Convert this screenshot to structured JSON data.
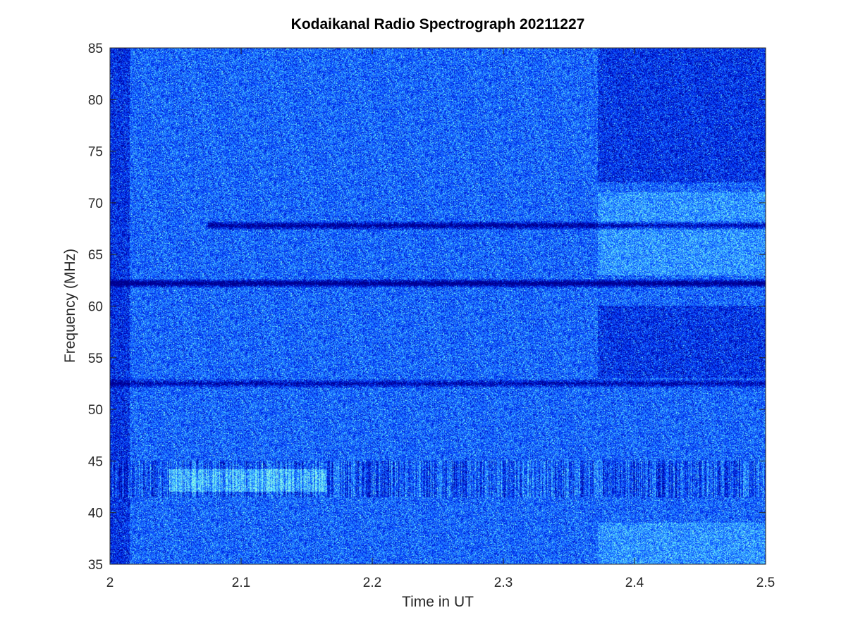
{
  "chart_data": {
    "type": "heatmap",
    "title": "Kodaikanal Radio Spectrograph  20211227",
    "xlabel": "Time in UT",
    "ylabel": "Frequency (MHz)",
    "xlim": [
      2,
      2.5
    ],
    "ylim": [
      35,
      85
    ],
    "x_ticks": [
      2,
      2.1,
      2.2,
      2.3,
      2.4,
      2.5
    ],
    "x_tick_labels": [
      "2",
      "2.1",
      "2.2",
      "2.3",
      "2.4",
      "2.5"
    ],
    "y_ticks": [
      35,
      40,
      45,
      50,
      55,
      60,
      65,
      70,
      75,
      80,
      85
    ],
    "y_tick_labels": [
      "35",
      "40",
      "45",
      "50",
      "55",
      "60",
      "65",
      "70",
      "75",
      "80",
      "85"
    ],
    "grid": false,
    "colormap": [
      "#00008f",
      "#0010c8",
      "#0040ff",
      "#1c6cff",
      "#3ab0ff",
      "#60e8ff",
      "#a0ffe0"
    ],
    "features": [
      {
        "kind": "horizontal_absorption_line",
        "frequency_mhz": 62.2,
        "x_start": 2.0,
        "x_end": 2.5,
        "strength": 0.95
      },
      {
        "kind": "horizontal_absorption_line",
        "frequency_mhz": 67.8,
        "x_start": 2.075,
        "x_end": 2.5,
        "strength": 0.8
      },
      {
        "kind": "horizontal_absorption_line",
        "frequency_mhz": 52.5,
        "x_start": 2.0,
        "x_end": 2.5,
        "strength": 0.6
      },
      {
        "kind": "bright_band",
        "f_low": 42.0,
        "f_high": 44.2,
        "x_start": 2.045,
        "x_end": 2.165,
        "strength": 0.8
      },
      {
        "kind": "vertical_striations",
        "f_low": 41.5,
        "f_high": 45.0,
        "x_start": 2.0,
        "x_end": 2.5
      },
      {
        "kind": "dark_region",
        "f_low": 72.0,
        "f_high": 85.0,
        "x_start": 2.372,
        "x_end": 2.5
      },
      {
        "kind": "dark_region",
        "f_low": 53.0,
        "f_high": 60.0,
        "x_start": 2.372,
        "x_end": 2.5
      },
      {
        "kind": "bright_region",
        "f_low": 63.0,
        "f_high": 71.0,
        "x_start": 2.372,
        "x_end": 2.5
      },
      {
        "kind": "bright_region",
        "f_low": 35.0,
        "f_high": 39.0,
        "x_start": 2.372,
        "x_end": 2.5
      },
      {
        "kind": "dark_edge",
        "x_start": 2.0,
        "x_end": 2.015
      }
    ]
  }
}
